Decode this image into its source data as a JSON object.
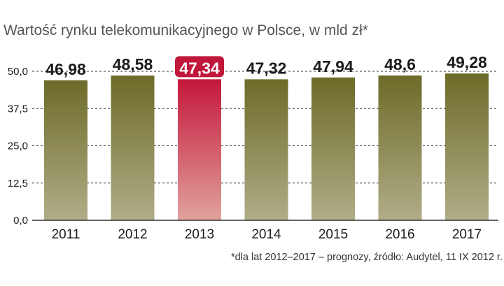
{
  "chart_data": {
    "type": "bar",
    "title": "Wartość rynku telekomunikacyjnego w Polsce, w mld zł*",
    "categories": [
      "2011",
      "2012",
      "2013",
      "2014",
      "2015",
      "2016",
      "2017"
    ],
    "values": [
      46.98,
      48.58,
      47.34,
      47.32,
      47.94,
      48.6,
      49.28
    ],
    "value_labels": [
      "46,98",
      "48,58",
      "47,34",
      "47,32",
      "47,94",
      "48,6",
      "49,28"
    ],
    "highlight_index": 2,
    "ylim": [
      0,
      50
    ],
    "yticks": [
      0,
      12.5,
      25,
      37.5,
      50
    ],
    "ytick_labels": [
      "0,0",
      "12,5",
      "25,0",
      "37,5",
      "50,0"
    ],
    "xlabel": "",
    "ylabel": "",
    "grid": true,
    "note": "*dla lat 2012–2017 – prognozy, źródło: Audytel, 11 IX 2012 r."
  },
  "colors": {
    "bar_top": "#6d6b28",
    "bar_bottom": "#b0ad88",
    "highlight_top": "#c4173a",
    "highlight_bottom": "#e0a29c",
    "highlight_label_bg": "#c0173a",
    "highlight_label_text": "#ffffff",
    "text": "#1a1a1a",
    "title": "#555555",
    "grid": "#333333"
  }
}
